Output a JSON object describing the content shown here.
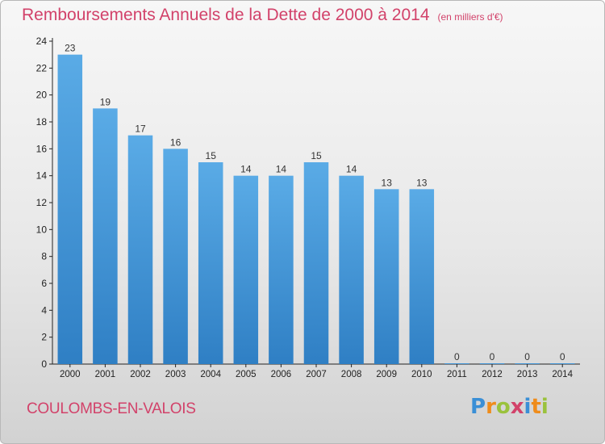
{
  "title": "Remboursements Annuels de la Dette de 2000 à 2014",
  "unit": "(en milliers d'€)",
  "place": "COULOMBS-EN-VALOIS",
  "brand": {
    "text": "Proxiti",
    "letter_colors": [
      "#3a8fd6",
      "#ef8c1b",
      "#9ac23c",
      "#d2426a",
      "#3a8fd6",
      "#ef8c1b",
      "#9ac23c"
    ]
  },
  "colors": {
    "bar": "#5aabe6",
    "bar_dark": "#2f7fc4",
    "accent": "#d2426a"
  },
  "chart_data": {
    "type": "bar",
    "categories": [
      "2000",
      "2001",
      "2002",
      "2003",
      "2004",
      "2005",
      "2006",
      "2007",
      "2008",
      "2009",
      "2010",
      "2011",
      "2012",
      "2013",
      "2014"
    ],
    "values": [
      23,
      19,
      17,
      16,
      15,
      14,
      14,
      15,
      14,
      13,
      13,
      0,
      0,
      0,
      0
    ],
    "ylim": [
      0,
      24
    ],
    "yticks": [
      0,
      2,
      4,
      6,
      8,
      10,
      12,
      14,
      16,
      18,
      20,
      22,
      24
    ],
    "grid": false
  }
}
